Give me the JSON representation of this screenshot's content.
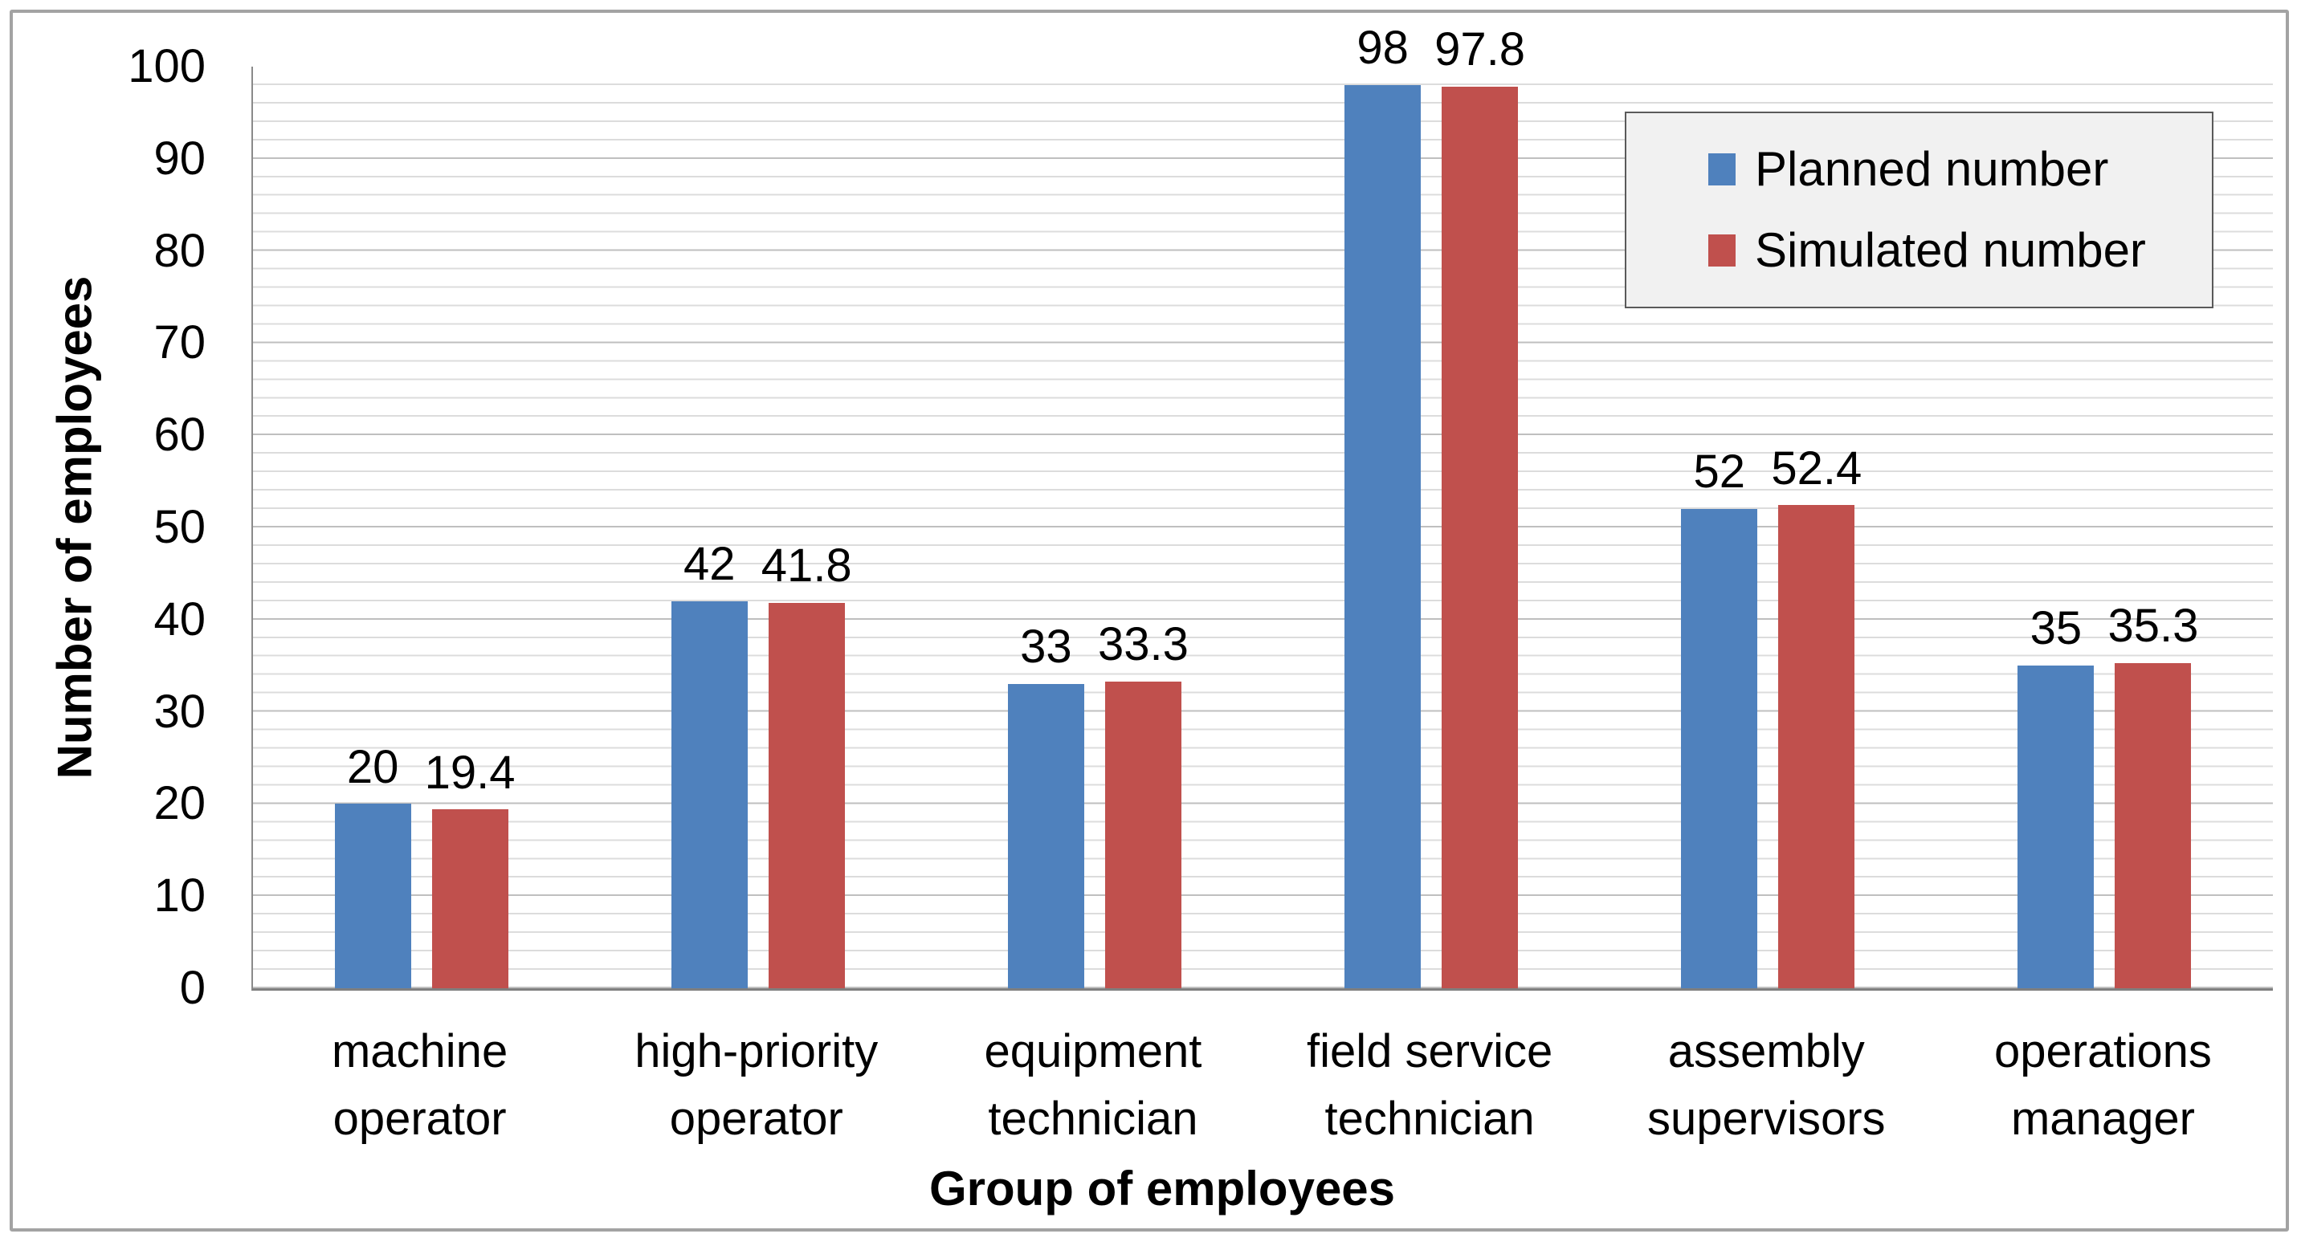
{
  "chart_data": {
    "type": "bar",
    "title": "",
    "xlabel": "Group of employees",
    "ylabel": "Number of employees",
    "categories": [
      "machine\noperator",
      "high-priority\noperator",
      "equipment\ntechnician",
      "field service\ntechnician",
      "assembly\nsupervisors",
      "operations\nmanager"
    ],
    "series": [
      {
        "name": "Planned number",
        "color": "#4F81BD",
        "values": [
          20,
          42,
          33,
          98,
          52,
          35
        ]
      },
      {
        "name": "Simulated number",
        "color": "#C0504D",
        "values": [
          19.4,
          41.8,
          33.3,
          97.8,
          52.4,
          35.3
        ]
      }
    ],
    "ylim": [
      0,
      100
    ],
    "yticks": [
      100,
      90,
      80,
      70,
      60,
      50,
      40,
      30,
      20,
      10,
      0
    ],
    "y_major_unit": 10,
    "y_minor_unit": 2,
    "grid": "horizontal major and minor gridlines",
    "legend_position": "top-right inside plot",
    "bar_value_labels": true
  }
}
